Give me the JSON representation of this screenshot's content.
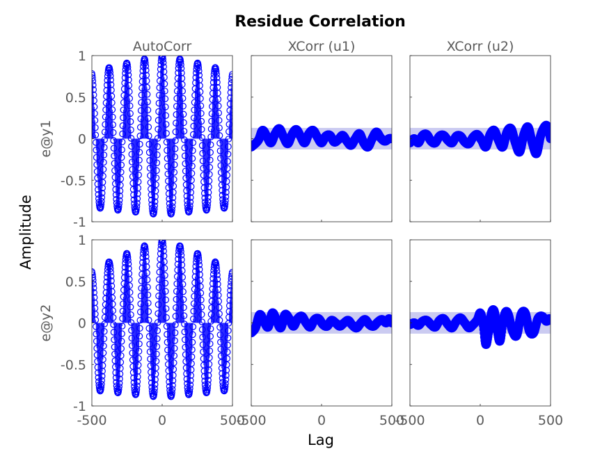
{
  "chart_data": {
    "type": "scatter",
    "title": "Residue Correlation",
    "xlabel": "Lag",
    "ylabel": "Amplitude",
    "columns": [
      "AutoCorr",
      "XCorr (u1)",
      "XCorr (u2)"
    ],
    "rows": [
      "e@y1",
      "e@y2"
    ],
    "xlim": [
      -500,
      500
    ],
    "ylim": [
      -1,
      1
    ],
    "xticks": [
      "-500",
      "0",
      "500"
    ],
    "yticks": [
      "1",
      "0.5",
      "0",
      "-0.5",
      "-1"
    ],
    "series_color": "#0000ff",
    "band_color": "#c8c8f0",
    "confidence_band": 0.13,
    "panels": [
      {
        "row": "e@y1",
        "column": "AutoCorr",
        "kind": "autocorr",
        "period": 126,
        "center_value": 1.0,
        "edge_value": 0.8,
        "dip_value": -0.92
      },
      {
        "row": "e@y1",
        "column": "XCorr (u1)",
        "kind": "xcorr",
        "x": [
          -500,
          -450,
          -420,
          -390,
          -360,
          -330,
          -300,
          -270,
          -240,
          -210,
          -180,
          -150,
          -120,
          -90,
          -60,
          -30,
          0,
          30,
          60,
          90,
          120,
          150,
          180,
          210,
          240,
          270,
          300,
          330,
          360,
          390,
          420,
          450,
          480,
          500
        ],
        "y": [
          -0.1,
          -0.02,
          0.1,
          0.03,
          -0.05,
          0.06,
          0.12,
          0.02,
          -0.06,
          0.05,
          0.11,
          0.03,
          -0.05,
          0.06,
          0.1,
          0.02,
          -0.05,
          0.03,
          0.04,
          -0.04,
          -0.01,
          0.04,
          -0.03,
          -0.08,
          0.0,
          0.06,
          -0.05,
          -0.1,
          0.0,
          0.08,
          0.01,
          -0.03,
          0.0,
          0.0
        ]
      },
      {
        "row": "e@y1",
        "column": "XCorr (u2)",
        "kind": "xcorr",
        "x": [
          -500,
          -470,
          -440,
          -410,
          -380,
          -350,
          -320,
          -290,
          -260,
          -230,
          -200,
          -170,
          -140,
          -110,
          -80,
          -50,
          -20,
          10,
          40,
          70,
          100,
          130,
          160,
          190,
          220,
          250,
          280,
          310,
          340,
          370,
          400,
          430,
          460,
          480,
          500
        ],
        "y": [
          -0.05,
          0.0,
          -0.05,
          0.04,
          0.05,
          -0.03,
          -0.05,
          0.03,
          0.04,
          -0.02,
          -0.05,
          0.03,
          0.03,
          -0.04,
          -0.06,
          0.02,
          0.05,
          -0.02,
          -0.1,
          0.05,
          0.1,
          -0.02,
          -0.1,
          0.08,
          0.12,
          -0.05,
          -0.16,
          0.05,
          0.14,
          -0.05,
          -0.18,
          0.04,
          0.15,
          0.14,
          0.0
        ]
      },
      {
        "row": "e@y2",
        "column": "AutoCorr",
        "kind": "autocorr",
        "period": 126,
        "center_value": 1.0,
        "edge_value": 0.63,
        "dip_value": -0.9
      },
      {
        "row": "e@y2",
        "column": "XCorr (u1)",
        "kind": "xcorr",
        "x": [
          -500,
          -470,
          -440,
          -410,
          -380,
          -350,
          -320,
          -290,
          -260,
          -230,
          -200,
          -170,
          -140,
          -110,
          -80,
          -50,
          -20,
          10,
          40,
          70,
          100,
          130,
          160,
          190,
          220,
          250,
          280,
          310,
          340,
          370,
          400,
          430,
          460,
          480,
          500
        ],
        "y": [
          -0.12,
          -0.06,
          0.1,
          0.02,
          -0.05,
          0.12,
          0.03,
          -0.06,
          0.1,
          0.05,
          -0.04,
          0.05,
          0.08,
          0.0,
          -0.05,
          0.04,
          0.05,
          -0.02,
          -0.04,
          0.03,
          0.0,
          -0.04,
          0.0,
          0.03,
          -0.03,
          -0.06,
          0.0,
          0.04,
          -0.02,
          -0.04,
          0.01,
          0.04,
          0.0,
          0.05,
          0.0
        ]
      },
      {
        "row": "e@y2",
        "column": "XCorr (u2)",
        "kind": "xcorr",
        "x": [
          -500,
          -470,
          -440,
          -410,
          -380,
          -350,
          -320,
          -290,
          -260,
          -230,
          -200,
          -170,
          -140,
          -110,
          -80,
          -50,
          -20,
          0,
          20,
          40,
          60,
          80,
          100,
          120,
          140,
          160,
          180,
          200,
          230,
          260,
          290,
          320,
          350,
          380,
          410,
          440,
          470,
          490,
          500
        ],
        "y": [
          -0.02,
          0.0,
          -0.03,
          0.02,
          0.03,
          -0.02,
          -0.05,
          0.03,
          0.05,
          -0.02,
          -0.06,
          0.02,
          0.06,
          0.0,
          -0.06,
          -0.02,
          0.04,
          0.12,
          0.0,
          -0.26,
          -0.1,
          0.12,
          0.14,
          -0.08,
          -0.22,
          0.0,
          0.13,
          0.1,
          -0.1,
          -0.15,
          0.1,
          0.12,
          -0.1,
          -0.12,
          0.05,
          0.08,
          0.02,
          0.05,
          0.03
        ]
      }
    ]
  }
}
